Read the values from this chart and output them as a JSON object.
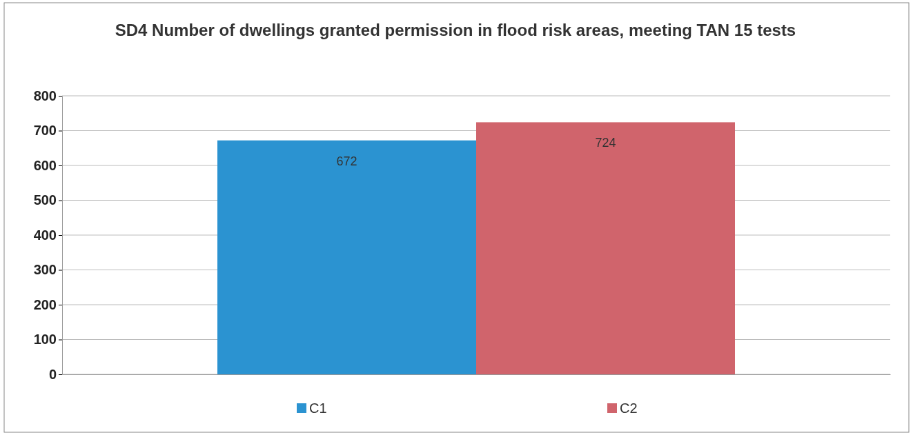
{
  "chart_data": {
    "type": "bar",
    "title": "SD4 Number of dwellings granted permission in flood risk areas, meeting TAN 15 tests",
    "categories": [
      null
    ],
    "series": [
      {
        "name": "C1",
        "color": "#2b93d1",
        "values": [
          672
        ]
      },
      {
        "name": "C2",
        "color": "#d0646c",
        "values": [
          724
        ]
      }
    ],
    "ylim": [
      0,
      800
    ],
    "yticks": [
      0,
      100,
      200,
      300,
      400,
      500,
      600,
      700,
      800
    ],
    "grid": "y",
    "legend": "bottom",
    "data_labels": true
  }
}
